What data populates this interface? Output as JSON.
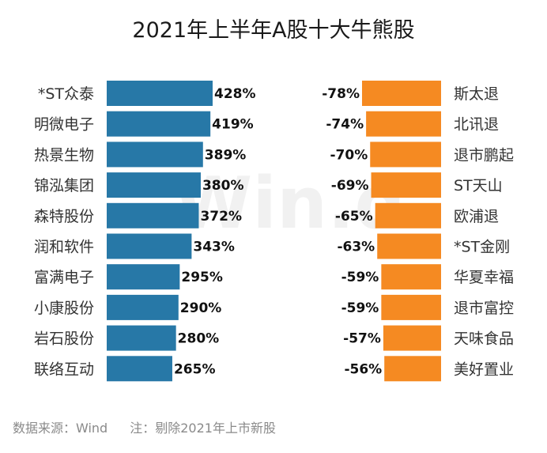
{
  "chart_data": {
    "type": "bar",
    "title": "2021年上半年A股十大牛熊股",
    "watermark": "Win.d",
    "colors": {
      "gain": "#2778a7",
      "loss": "#f58a22"
    },
    "gainers": {
      "categories": [
        "*ST众泰",
        "明微电子",
        "热景生物",
        "锦泓集团",
        "森特股份",
        "润和软件",
        "富满电子",
        "小康股份",
        "岩石股份",
        "联络互动"
      ],
      "values": [
        428,
        419,
        389,
        380,
        372,
        343,
        295,
        290,
        280,
        265
      ],
      "labels": [
        "428%",
        "419%",
        "389%",
        "380%",
        "372%",
        "343%",
        "295%",
        "290%",
        "280%",
        "265%"
      ]
    },
    "losers": {
      "categories": [
        "斯太退",
        "北讯退",
        "退市鹏起",
        "ST天山",
        "欧浦退",
        "*ST金刚",
        "华夏幸福",
        "退市富控",
        "天味食品",
        "美好置业"
      ],
      "values": [
        -78,
        -74,
        -70,
        -69,
        -65,
        -63,
        -59,
        -59,
        -57,
        -56
      ],
      "labels": [
        "-78%",
        "-74%",
        "-70%",
        "-69%",
        "-65%",
        "-63%",
        "-59%",
        "-59%",
        "-57%",
        "-56%"
      ]
    }
  },
  "footer": {
    "source": "数据来源：Wind",
    "note": "注：剔除2021年上市新股"
  }
}
